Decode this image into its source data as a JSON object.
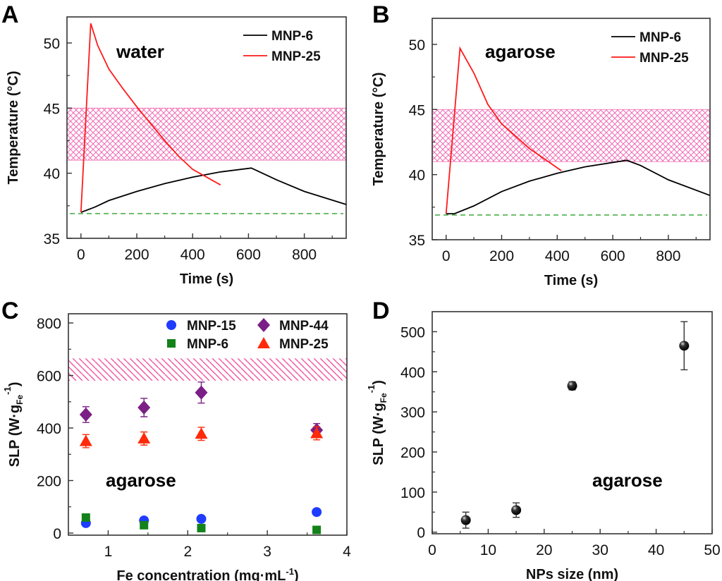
{
  "chart_data": [
    {
      "panel": "A",
      "type": "line",
      "annotation": "water",
      "xlabel": "Time (s)",
      "ylabel": "Temperature (°C)",
      "xlim": [
        -50,
        950
      ],
      "ylim": [
        35,
        52
      ],
      "xticks": [
        0,
        200,
        400,
        600,
        800
      ],
      "yticks": [
        35,
        40,
        45,
        50
      ],
      "band": {
        "y": [
          41,
          45
        ],
        "color": "#f06ab4",
        "hatch": "cross"
      },
      "baseline": {
        "y": 36.9,
        "color": "#2ca02c",
        "style": "dashed"
      },
      "legend": "top-right",
      "series": [
        {
          "name": "MNP-6",
          "color": "#000000",
          "x": [
            0,
            50,
            100,
            200,
            300,
            400,
            500,
            610,
            700,
            800,
            950
          ],
          "y": [
            37,
            37.4,
            37.9,
            38.6,
            39.2,
            39.7,
            40.1,
            40.4,
            39.5,
            38.6,
            37.6
          ]
        },
        {
          "name": "MNP-25",
          "color": "#ff1a1a",
          "x": [
            0,
            35,
            60,
            100,
            150,
            200,
            250,
            300,
            350,
            400,
            450,
            500
          ],
          "y": [
            37,
            51.5,
            49.8,
            48,
            46.5,
            45.1,
            43.8,
            42.5,
            41.3,
            40.3,
            39.7,
            39.1
          ]
        }
      ]
    },
    {
      "panel": "B",
      "type": "line",
      "annotation": "agarose",
      "xlabel": "Time (s)",
      "ylabel": "Temperature (°C)",
      "xlim": [
        -50,
        950
      ],
      "ylim": [
        35,
        52
      ],
      "xticks": [
        0,
        200,
        400,
        600,
        800
      ],
      "yticks": [
        35,
        40,
        45,
        50
      ],
      "band": {
        "y": [
          41,
          45
        ],
        "color": "#f06ab4",
        "hatch": "cross"
      },
      "baseline": {
        "y": 36.9,
        "color": "#2ca02c",
        "style": "dashed"
      },
      "legend": "top-right",
      "series": [
        {
          "name": "MNP-6",
          "color": "#000000",
          "x": [
            0,
            30,
            100,
            200,
            300,
            400,
            500,
            650,
            700,
            800,
            950
          ],
          "y": [
            37,
            37,
            37.6,
            38.7,
            39.5,
            40.1,
            40.6,
            41.1,
            40.7,
            39.6,
            38.4
          ]
        },
        {
          "name": "MNP-25",
          "color": "#ff1a1a",
          "x": [
            0,
            50,
            100,
            150,
            200,
            300,
            415
          ],
          "y": [
            37,
            49.7,
            47.8,
            45.4,
            43.9,
            42,
            40.3
          ]
        }
      ]
    },
    {
      "panel": "C",
      "type": "scatter",
      "annotation": "agarose",
      "xlabel": "Fe concentration (mg·mL",
      "xlabel_sup": "-1",
      "xlabel_end": ")",
      "ylabel": "SLP (W·g",
      "ylabel_sub": "Fe",
      "ylabel_sup": "-1",
      "ylabel_end": ")",
      "xlim": [
        0.5,
        4
      ],
      "ylim": [
        -8,
        835
      ],
      "xticks": [
        1,
        2,
        3,
        4
      ],
      "yticks": [
        0,
        200,
        400,
        600,
        800
      ],
      "band": {
        "y": [
          580,
          665
        ],
        "color": "#f06ab4",
        "hatch": "diagonal"
      },
      "legend": "top-right",
      "series": [
        {
          "name": "MNP-15",
          "marker": "circle",
          "color": "#1f3cff",
          "x": [
            0.72,
            1.45,
            2.17,
            3.62
          ],
          "y": [
            38,
            48,
            54,
            80
          ]
        },
        {
          "name": "MNP-44",
          "marker": "diamond",
          "color": "#7b1f86",
          "x": [
            0.72,
            1.45,
            2.17,
            3.62
          ],
          "y": [
            451,
            478,
            535,
            392
          ],
          "err": [
            30,
            35,
            40,
            25
          ]
        },
        {
          "name": "MNP-6",
          "marker": "square",
          "color": "#13821a",
          "x": [
            0.72,
            1.45,
            2.17,
            3.62
          ],
          "y": [
            59,
            30,
            19,
            12
          ]
        },
        {
          "name": "MNP-25",
          "marker": "triangle",
          "color": "#ff2a0a",
          "x": [
            0.72,
            1.45,
            2.17,
            3.62
          ],
          "y": [
            350,
            360,
            378,
            380
          ],
          "err": [
            25,
            25,
            25,
            25
          ]
        }
      ]
    },
    {
      "panel": "D",
      "type": "scatter",
      "annotation": "agarose",
      "xlabel": "NPs size (nm)",
      "ylabel": "SLP (W·g",
      "ylabel_sub": "Fe",
      "ylabel_sup": "-1",
      "ylabel_end": ")",
      "xlim": [
        0,
        50
      ],
      "ylim": [
        -4,
        550
      ],
      "xticks": [
        0,
        10,
        20,
        30,
        40,
        50
      ],
      "yticks": [
        0,
        100,
        200,
        300,
        400,
        500
      ],
      "series": [
        {
          "marker": "sphere",
          "color": "#000000",
          "x": [
            6,
            15,
            25,
            45
          ],
          "y": [
            30,
            55,
            365,
            465
          ],
          "err": [
            20,
            18,
            10,
            60
          ]
        }
      ]
    }
  ]
}
